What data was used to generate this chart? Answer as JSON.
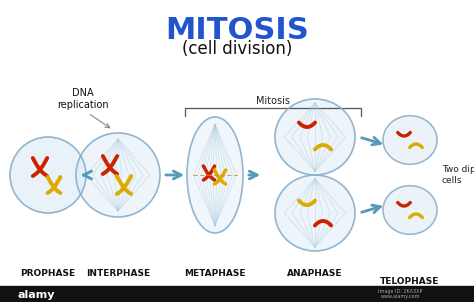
{
  "title": "MITOSIS",
  "subtitle": "(cell division)",
  "title_color": "#2255cc",
  "subtitle_color": "#111111",
  "bg_color": "#ffffff",
  "phases": [
    "PROPHASE",
    "INTERPHASE",
    "METAPHASE",
    "ANAPHASE",
    "TELOPHASE"
  ],
  "cell_color": "#d8e8f5",
  "cell_edge": "#8ab0cc",
  "chr_red": "#cc2200",
  "chr_yellow": "#ddaa00",
  "arrow_color": "#5599bb",
  "dna_label": "DNA\nreplication",
  "mitosis_label": "Mitosis",
  "two_diploid": "Two diploid\ncells"
}
